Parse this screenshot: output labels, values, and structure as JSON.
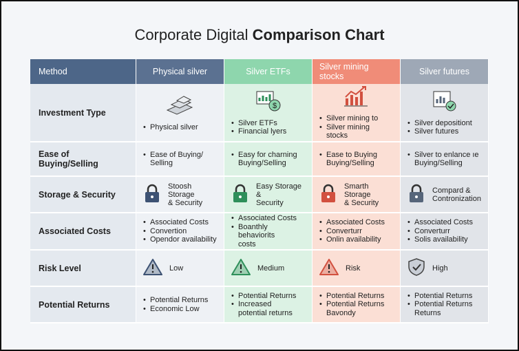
{
  "title": {
    "normal": "Corporate Digital",
    "bold": "Comparison Chart"
  },
  "table": {
    "header": [
      "Method",
      "Physical silver",
      "Silver ETFs",
      "Silver mining stocks",
      "Silver futures"
    ],
    "rows": [
      {
        "label": "Investment Type",
        "cells": [
          {
            "bullets": [
              [
                "Physical silver"
              ]
            ]
          },
          {
            "bullets": [
              [
                "Silver ETFs"
              ],
              [
                "Financial lyers"
              ]
            ]
          },
          {
            "bullets": [
              [
                "Silver mining to"
              ],
              [
                "Silver mining stocks"
              ]
            ]
          },
          {
            "bullets": [
              [
                "Silver depositiont"
              ],
              [
                "Silver futures"
              ]
            ]
          }
        ]
      },
      {
        "label": "Ease of Buying/Selling",
        "cells": [
          {
            "bullets": [
              [
                "Ease of Buying/",
                "Selling"
              ]
            ]
          },
          {
            "bullets": [
              [
                "Easy for charning",
                "Buying/Selling"
              ]
            ]
          },
          {
            "bullets": [
              [
                "Ease to Buying",
                "Buying/Selling"
              ]
            ]
          },
          {
            "bullets": [
              [
                "Silver to enlance ıe",
                "Buying/Selling"
              ]
            ]
          }
        ]
      },
      {
        "label": "Storage & Security",
        "cells": [
          {
            "text": [
              "Stoosh Storage",
              "& Security"
            ]
          },
          {
            "text": [
              "Easy Storage &",
              "Security"
            ]
          },
          {
            "text": [
              "Smarth Storage",
              "& Security"
            ]
          },
          {
            "text": [
              "Compard &",
              "Contronization"
            ]
          }
        ]
      },
      {
        "label": "Associated Costs",
        "cells": [
          {
            "bullets": [
              [
                "Associated Costs"
              ],
              [
                "Convertion"
              ],
              [
                "Opendor availability"
              ]
            ]
          },
          {
            "bullets": [
              [
                "Associated Costs"
              ],
              [
                "Boanthly behaviorits",
                "costs"
              ]
            ]
          },
          {
            "bullets": [
              [
                "Associated Costs"
              ],
              [
                "Converturr"
              ],
              [
                "Onlin availability"
              ]
            ]
          },
          {
            "bullets": [
              [
                "Associated Costs"
              ],
              [
                "Converturr"
              ],
              [
                "Solis availability"
              ]
            ]
          }
        ]
      },
      {
        "label": "Risk Level",
        "cells": [
          {
            "text": [
              "Low"
            ]
          },
          {
            "text": [
              "Medium"
            ]
          },
          {
            "text": [
              "Risk"
            ]
          },
          {
            "text": [
              "High"
            ]
          }
        ]
      },
      {
        "label": "Potential Returns",
        "cells": [
          {
            "bullets": [
              [
                "Potential Returns"
              ],
              [
                "Economic Low"
              ]
            ]
          },
          {
            "bullets": [
              [
                "Potential Returns"
              ],
              [
                "Increased",
                "potential returns"
              ]
            ]
          },
          {
            "bullets": [
              [
                "Potential Returns"
              ],
              [
                "Potential Returns",
                "Bavondy"
              ]
            ]
          },
          {
            "bullets": [
              [
                "Potential Returns"
              ],
              [
                "Potential Returns",
                "Returns"
              ]
            ]
          }
        ]
      }
    ]
  }
}
